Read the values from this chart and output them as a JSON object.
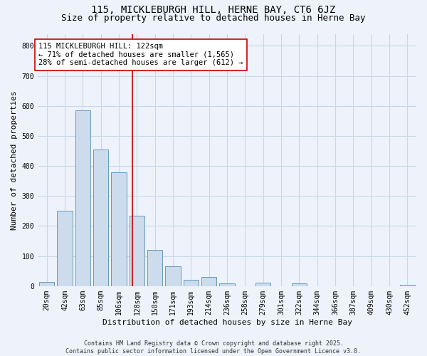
{
  "title": "115, MICKLEBURGH HILL, HERNE BAY, CT6 6JZ",
  "subtitle": "Size of property relative to detached houses in Herne Bay",
  "xlabel": "Distribution of detached houses by size in Herne Bay",
  "ylabel": "Number of detached properties",
  "categories": [
    "20sqm",
    "42sqm",
    "63sqm",
    "85sqm",
    "106sqm",
    "128sqm",
    "150sqm",
    "171sqm",
    "193sqm",
    "214sqm",
    "236sqm",
    "258sqm",
    "279sqm",
    "301sqm",
    "322sqm",
    "344sqm",
    "366sqm",
    "387sqm",
    "409sqm",
    "430sqm",
    "452sqm"
  ],
  "values": [
    15,
    250,
    585,
    455,
    380,
    235,
    120,
    65,
    20,
    30,
    10,
    0,
    12,
    0,
    10,
    0,
    0,
    0,
    0,
    0,
    5
  ],
  "bar_color": "#ccdcec",
  "bar_edge_color": "#6699bb",
  "grid_color": "#c8d8e8",
  "background_color": "#eef3fb",
  "vline_x": 4.75,
  "vline_color": "#cc0000",
  "annotation_text": "115 MICKLEBURGH HILL: 122sqm\n← 71% of detached houses are smaller (1,565)\n28% of semi-detached houses are larger (612) →",
  "annotation_box_color": "#ffffff",
  "annotation_box_edge": "#cc0000",
  "ylim": [
    0,
    840
  ],
  "yticks": [
    0,
    100,
    200,
    300,
    400,
    500,
    600,
    700,
    800
  ],
  "footer": "Contains HM Land Registry data © Crown copyright and database right 2025.\nContains public sector information licensed under the Open Government Licence v3.0.",
  "title_fontsize": 10,
  "subtitle_fontsize": 9,
  "axis_label_fontsize": 8,
  "tick_fontsize": 7,
  "annotation_fontsize": 7.5,
  "footer_fontsize": 6
}
